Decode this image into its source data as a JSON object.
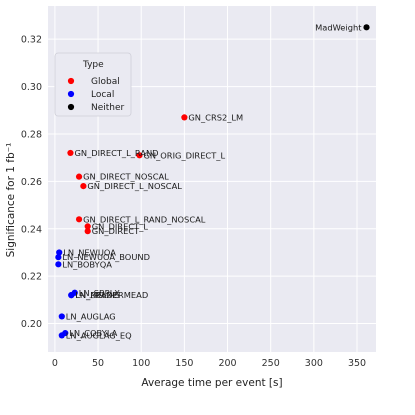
{
  "chart_data": {
    "type": "scatter",
    "xlabel": "Average time per event [s]",
    "ylabel": "Significance for 1 fb⁻¹",
    "xlim": [
      -8,
      372
    ],
    "ylim": [
      0.188,
      0.334
    ],
    "xticks": [
      0,
      50,
      100,
      150,
      200,
      250,
      300,
      350
    ],
    "yticks": [
      0.2,
      0.22,
      0.24,
      0.26,
      0.28,
      0.3,
      0.32
    ],
    "ytick_labels": [
      "0.20",
      "0.22",
      "0.24",
      "0.26",
      "0.28",
      "0.30",
      "0.32"
    ],
    "grid": true,
    "legend": {
      "title": "Type",
      "placement": "top-left",
      "entries": [
        {
          "name": "Global",
          "color": "#ff0000"
        },
        {
          "name": "Local",
          "color": "#0000ff"
        },
        {
          "name": "Neither",
          "color": "#000000"
        }
      ]
    },
    "series": [
      {
        "name": "Global",
        "color": "#ff0000",
        "points": [
          {
            "label": "GN_CRS2_LM",
            "x": 150,
            "y": 0.287
          },
          {
            "label": "GN_DIRECT_L_RAND",
            "x": 18,
            "y": 0.272
          },
          {
            "label": "GN_ORIG_DIRECT_L",
            "x": 98,
            "y": 0.271
          },
          {
            "label": "GN_DIRECT_NOSCAL",
            "x": 28,
            "y": 0.262
          },
          {
            "label": "GN_DIRECT_L_NOSCAL",
            "x": 33,
            "y": 0.258
          },
          {
            "label": "GN_DIRECT_L_RAND_NOSCAL",
            "x": 28,
            "y": 0.244
          },
          {
            "label": "GN_DIRECT_L",
            "x": 38,
            "y": 0.241
          },
          {
            "label": "GN_DIRECT",
            "x": 38,
            "y": 0.239
          }
        ]
      },
      {
        "name": "Local",
        "color": "#0000ff",
        "points": [
          {
            "label": "LN_NEWUOA",
            "x": 5,
            "y": 0.23
          },
          {
            "label": "LN_NEWUOA_BOUND",
            "x": 4,
            "y": 0.228
          },
          {
            "label": "LN_BOBYQA",
            "x": 4,
            "y": 0.225
          },
          {
            "label": "LN_SBPLX",
            "x": 23,
            "y": 0.213
          },
          {
            "label": "LN_PRAXIS",
            "x": 19,
            "y": 0.212
          },
          {
            "label": "LN_NELDERMEAD",
            "x": 19,
            "y": 0.212
          },
          {
            "label": "LN_AUGLAG",
            "x": 8,
            "y": 0.203
          },
          {
            "label": "LN_COBYLA",
            "x": 12,
            "y": 0.196
          },
          {
            "label": "LN_AUGLAG_EQ",
            "x": 8,
            "y": 0.195
          }
        ]
      },
      {
        "name": "Neither",
        "color": "#000000",
        "points": [
          {
            "label": "MadWeight",
            "x": 361,
            "y": 0.325
          }
        ]
      }
    ]
  }
}
